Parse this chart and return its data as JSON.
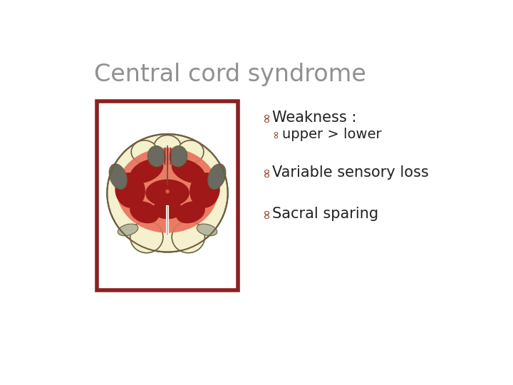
{
  "title": "Central cord syndrome",
  "title_color": "#909090",
  "title_fontsize": 24,
  "background_color": "#ffffff",
  "box_border_color": "#8B2020",
  "box_bg_color": "#ffffff",
  "text_color": "#8B3010",
  "bullet1": "Weakness :",
  "bullet1b": "upper > lower",
  "bullet2": "Variable sensory loss",
  "bullet3": "Sacral sparing",
  "text_fontsize": 15,
  "cord_cream": "#f5f0ce",
  "cord_outline": "#6b6040",
  "cord_red_light": "#e8705a",
  "cord_red_dark": "#a01818",
  "cord_gray_dark": "#6a6a60",
  "cord_gray_light": "#b8b8a0",
  "cord_tan": "#c8b870"
}
